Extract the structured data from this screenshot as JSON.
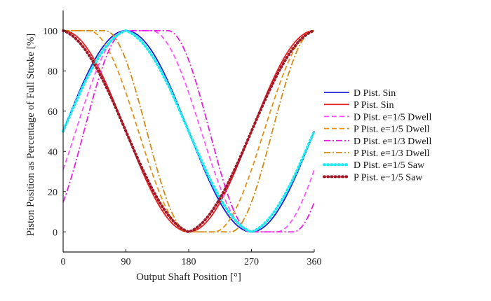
{
  "chart_data": {
    "type": "line",
    "title": "",
    "xlabel": "Output Shaft Position [°]",
    "ylabel": "Piston Position as Percentage of Full Stroke [%]",
    "xlim": [
      0,
      360
    ],
    "ylim": [
      -10,
      110
    ],
    "xticks": [
      0,
      90,
      180,
      270,
      360
    ],
    "yticks": [
      0,
      20,
      40,
      60,
      80,
      100
    ],
    "grid": false,
    "legend_position": "right",
    "series": [
      {
        "name": "D Pist. Sin",
        "color": "#1f1fd6",
        "style": "solid",
        "model": "sin",
        "phase": 0,
        "e": 0
      },
      {
        "name": "P Pist. Sin",
        "color": "#e8231f",
        "style": "solid",
        "model": "sin",
        "phase": 90,
        "e": 0
      },
      {
        "name": "D Pist. e=1/5 Dwell",
        "color": "#ff55ff",
        "style": "dashed",
        "model": "dwell",
        "phase": 0,
        "e": 0.2
      },
      {
        "name": "P Pist. e=1/5 Dwell",
        "color": "#e8921a",
        "style": "dashed",
        "model": "dwell",
        "phase": 90,
        "e": 0.2
      },
      {
        "name": "D Pist. e=1/3 Dwell",
        "color": "#e81ee0",
        "style": "dashdot",
        "model": "dwell",
        "phase": 0,
        "e": 0.333
      },
      {
        "name": "P Pist. e=1/3 Dwell",
        "color": "#d48a10",
        "style": "dashdot",
        "model": "dwell",
        "phase": 90,
        "e": 0.333
      },
      {
        "name": "D Pist. e=1/5 Saw",
        "color": "#22e8f0",
        "style": "dotted",
        "model": "saw",
        "phase": 0,
        "e": 0.2
      },
      {
        "name": "P Pist. e−1/5 Saw",
        "color": "#a01a2a",
        "style": "dotted",
        "model": "saw",
        "phase": 90,
        "e": 0.2
      }
    ]
  }
}
